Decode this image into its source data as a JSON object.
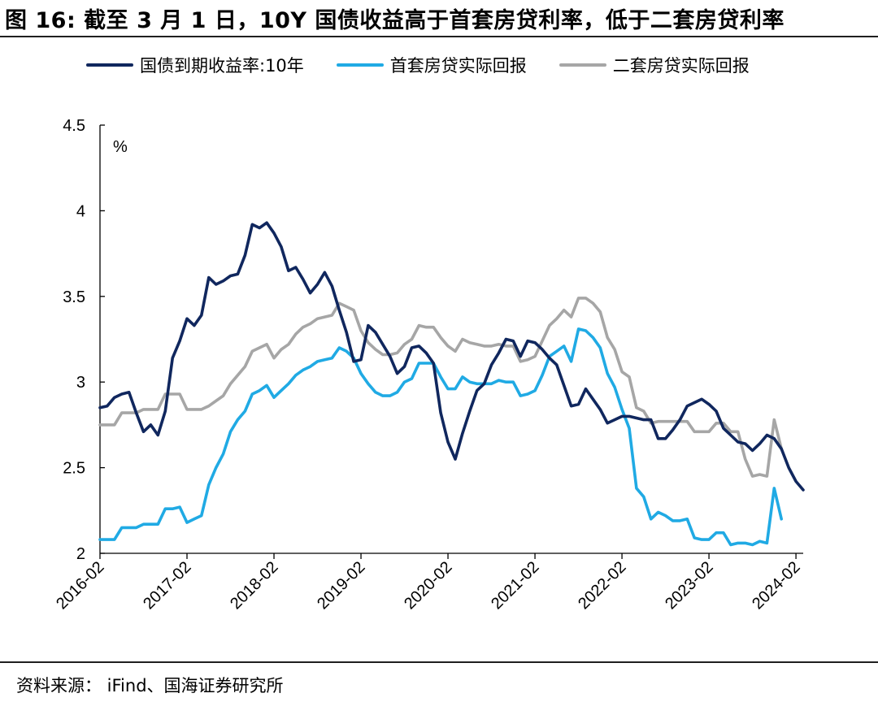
{
  "page": {
    "title": "图 16:  截至 3 月 1 日，10Y 国债收益高于首套房贷利率，低于二套房贷利率",
    "source": "资料来源：  iFind、国海证券研究所"
  },
  "chart_data": {
    "type": "line",
    "ylabel": "%",
    "ylim": [
      2,
      4.5
    ],
    "yticks": [
      2,
      2.5,
      3,
      3.5,
      4,
      4.5
    ],
    "xlim": [
      "2016-02",
      "2024-03"
    ],
    "xticks": [
      "2016-02",
      "2017-02",
      "2018-02",
      "2019-02",
      "2020-02",
      "2021-02",
      "2022-02",
      "2023-02",
      "2024-02"
    ],
    "grid": false,
    "legend_position": "top",
    "series": [
      {
        "name": "国债到期收益率:10年",
        "color": "#10275e",
        "points": [
          [
            "2016-02",
            2.85
          ],
          [
            "2016-03",
            2.86
          ],
          [
            "2016-04",
            2.91
          ],
          [
            "2016-05",
            2.93
          ],
          [
            "2016-06",
            2.94
          ],
          [
            "2016-07",
            2.82
          ],
          [
            "2016-08",
            2.71
          ],
          [
            "2016-09",
            2.75
          ],
          [
            "2016-10",
            2.69
          ],
          [
            "2016-11",
            2.83
          ],
          [
            "2016-12",
            3.14
          ],
          [
            "2017-01",
            3.24
          ],
          [
            "2017-02",
            3.37
          ],
          [
            "2017-03",
            3.33
          ],
          [
            "2017-04",
            3.39
          ],
          [
            "2017-05",
            3.61
          ],
          [
            "2017-06",
            3.57
          ],
          [
            "2017-07",
            3.59
          ],
          [
            "2017-08",
            3.62
          ],
          [
            "2017-09",
            3.63
          ],
          [
            "2017-10",
            3.74
          ],
          [
            "2017-11",
            3.92
          ],
          [
            "2017-12",
            3.9
          ],
          [
            "2018-01",
            3.93
          ],
          [
            "2018-02",
            3.87
          ],
          [
            "2018-03",
            3.79
          ],
          [
            "2018-04",
            3.65
          ],
          [
            "2018-05",
            3.67
          ],
          [
            "2018-06",
            3.6
          ],
          [
            "2018-07",
            3.52
          ],
          [
            "2018-08",
            3.57
          ],
          [
            "2018-09",
            3.64
          ],
          [
            "2018-10",
            3.56
          ],
          [
            "2018-11",
            3.42
          ],
          [
            "2018-12",
            3.29
          ],
          [
            "2019-01",
            3.12
          ],
          [
            "2019-02",
            3.13
          ],
          [
            "2019-03",
            3.33
          ],
          [
            "2019-04",
            3.29
          ],
          [
            "2019-05",
            3.22
          ],
          [
            "2019-06",
            3.15
          ],
          [
            "2019-07",
            3.05
          ],
          [
            "2019-08",
            3.09
          ],
          [
            "2019-09",
            3.2
          ],
          [
            "2019-10",
            3.21
          ],
          [
            "2019-11",
            3.17
          ],
          [
            "2019-12",
            3.11
          ],
          [
            "2020-01",
            2.82
          ],
          [
            "2020-02",
            2.65
          ],
          [
            "2020-03",
            2.55
          ],
          [
            "2020-04",
            2.7
          ],
          [
            "2020-05",
            2.83
          ],
          [
            "2020-06",
            2.95
          ],
          [
            "2020-07",
            2.99
          ],
          [
            "2020-08",
            3.1
          ],
          [
            "2020-09",
            3.17
          ],
          [
            "2020-10",
            3.25
          ],
          [
            "2020-11",
            3.24
          ],
          [
            "2020-12",
            3.15
          ],
          [
            "2021-01",
            3.24
          ],
          [
            "2021-02",
            3.23
          ],
          [
            "2021-03",
            3.19
          ],
          [
            "2021-04",
            3.14
          ],
          [
            "2021-05",
            3.1
          ],
          [
            "2021-06",
            2.98
          ],
          [
            "2021-07",
            2.86
          ],
          [
            "2021-08",
            2.87
          ],
          [
            "2021-09",
            2.96
          ],
          [
            "2021-10",
            2.9
          ],
          [
            "2021-11",
            2.84
          ],
          [
            "2021-12",
            2.76
          ],
          [
            "2022-01",
            2.78
          ],
          [
            "2022-02",
            2.8
          ],
          [
            "2022-03",
            2.8
          ],
          [
            "2022-04",
            2.79
          ],
          [
            "2022-05",
            2.78
          ],
          [
            "2022-06",
            2.78
          ],
          [
            "2022-07",
            2.67
          ],
          [
            "2022-08",
            2.67
          ],
          [
            "2022-09",
            2.72
          ],
          [
            "2022-10",
            2.78
          ],
          [
            "2022-11",
            2.86
          ],
          [
            "2022-12",
            2.88
          ],
          [
            "2023-01",
            2.9
          ],
          [
            "2023-02",
            2.87
          ],
          [
            "2023-03",
            2.83
          ],
          [
            "2023-04",
            2.73
          ],
          [
            "2023-05",
            2.69
          ],
          [
            "2023-06",
            2.65
          ],
          [
            "2023-07",
            2.64
          ],
          [
            "2023-08",
            2.6
          ],
          [
            "2023-09",
            2.64
          ],
          [
            "2023-10",
            2.69
          ],
          [
            "2023-11",
            2.67
          ],
          [
            "2023-12",
            2.61
          ],
          [
            "2024-01",
            2.5
          ],
          [
            "2024-02",
            2.42
          ],
          [
            "2024-03",
            2.37
          ]
        ]
      },
      {
        "name": "首套房贷实际回报",
        "color": "#20aae4",
        "points": [
          [
            "2016-02",
            2.08
          ],
          [
            "2016-03",
            2.08
          ],
          [
            "2016-04",
            2.08
          ],
          [
            "2016-05",
            2.15
          ],
          [
            "2016-06",
            2.15
          ],
          [
            "2016-07",
            2.15
          ],
          [
            "2016-08",
            2.17
          ],
          [
            "2016-09",
            2.17
          ],
          [
            "2016-10",
            2.17
          ],
          [
            "2016-11",
            2.26
          ],
          [
            "2016-12",
            2.26
          ],
          [
            "2017-01",
            2.27
          ],
          [
            "2017-02",
            2.18
          ],
          [
            "2017-03",
            2.2
          ],
          [
            "2017-04",
            2.22
          ],
          [
            "2017-05",
            2.4
          ],
          [
            "2017-06",
            2.5
          ],
          [
            "2017-07",
            2.58
          ],
          [
            "2017-08",
            2.71
          ],
          [
            "2017-09",
            2.78
          ],
          [
            "2017-10",
            2.83
          ],
          [
            "2017-11",
            2.93
          ],
          [
            "2017-12",
            2.95
          ],
          [
            "2018-01",
            2.98
          ],
          [
            "2018-02",
            2.91
          ],
          [
            "2018-03",
            2.95
          ],
          [
            "2018-04",
            2.99
          ],
          [
            "2018-05",
            3.04
          ],
          [
            "2018-06",
            3.07
          ],
          [
            "2018-07",
            3.09
          ],
          [
            "2018-08",
            3.12
          ],
          [
            "2018-09",
            3.13
          ],
          [
            "2018-10",
            3.14
          ],
          [
            "2018-11",
            3.2
          ],
          [
            "2018-12",
            3.18
          ],
          [
            "2019-01",
            3.14
          ],
          [
            "2019-02",
            3.05
          ],
          [
            "2019-03",
            2.99
          ],
          [
            "2019-04",
            2.94
          ],
          [
            "2019-05",
            2.92
          ],
          [
            "2019-06",
            2.92
          ],
          [
            "2019-07",
            2.94
          ],
          [
            "2019-08",
            3.0
          ],
          [
            "2019-09",
            3.02
          ],
          [
            "2019-10",
            3.11
          ],
          [
            "2019-11",
            3.11
          ],
          [
            "2019-12",
            3.11
          ],
          [
            "2020-01",
            3.03
          ],
          [
            "2020-02",
            2.96
          ],
          [
            "2020-03",
            2.96
          ],
          [
            "2020-04",
            3.03
          ],
          [
            "2020-05",
            3.0
          ],
          [
            "2020-06",
            2.99
          ],
          [
            "2020-07",
            2.99
          ],
          [
            "2020-08",
            2.99
          ],
          [
            "2020-09",
            3.01
          ],
          [
            "2020-10",
            3.0
          ],
          [
            "2020-11",
            3.0
          ],
          [
            "2020-12",
            2.92
          ],
          [
            "2021-01",
            2.93
          ],
          [
            "2021-02",
            2.95
          ],
          [
            "2021-03",
            3.04
          ],
          [
            "2021-04",
            3.15
          ],
          [
            "2021-05",
            3.18
          ],
          [
            "2021-06",
            3.21
          ],
          [
            "2021-07",
            3.12
          ],
          [
            "2021-08",
            3.31
          ],
          [
            "2021-09",
            3.3
          ],
          [
            "2021-10",
            3.26
          ],
          [
            "2021-11",
            3.2
          ],
          [
            "2021-12",
            3.05
          ],
          [
            "2022-01",
            2.97
          ],
          [
            "2022-02",
            2.84
          ],
          [
            "2022-03",
            2.73
          ],
          [
            "2022-04",
            2.38
          ],
          [
            "2022-05",
            2.33
          ],
          [
            "2022-06",
            2.2
          ],
          [
            "2022-07",
            2.24
          ],
          [
            "2022-08",
            2.22
          ],
          [
            "2022-09",
            2.19
          ],
          [
            "2022-10",
            2.19
          ],
          [
            "2022-11",
            2.2
          ],
          [
            "2022-12",
            2.09
          ],
          [
            "2023-01",
            2.08
          ],
          [
            "2023-02",
            2.08
          ],
          [
            "2023-03",
            2.12
          ],
          [
            "2023-04",
            2.12
          ],
          [
            "2023-05",
            2.05
          ],
          [
            "2023-06",
            2.06
          ],
          [
            "2023-07",
            2.06
          ],
          [
            "2023-08",
            2.05
          ],
          [
            "2023-09",
            2.07
          ],
          [
            "2023-10",
            2.06
          ],
          [
            "2023-11",
            2.38
          ],
          [
            "2023-12",
            2.2
          ]
        ]
      },
      {
        "name": "二套房贷实际回报",
        "color": "#a6a6a6",
        "points": [
          [
            "2016-02",
            2.75
          ],
          [
            "2016-03",
            2.75
          ],
          [
            "2016-04",
            2.75
          ],
          [
            "2016-05",
            2.82
          ],
          [
            "2016-06",
            2.82
          ],
          [
            "2016-07",
            2.82
          ],
          [
            "2016-08",
            2.84
          ],
          [
            "2016-09",
            2.84
          ],
          [
            "2016-10",
            2.84
          ],
          [
            "2016-11",
            2.93
          ],
          [
            "2016-12",
            2.93
          ],
          [
            "2017-01",
            2.93
          ],
          [
            "2017-02",
            2.84
          ],
          [
            "2017-03",
            2.84
          ],
          [
            "2017-04",
            2.84
          ],
          [
            "2017-05",
            2.86
          ],
          [
            "2017-06",
            2.89
          ],
          [
            "2017-07",
            2.92
          ],
          [
            "2017-08",
            2.99
          ],
          [
            "2017-09",
            3.04
          ],
          [
            "2017-10",
            3.09
          ],
          [
            "2017-11",
            3.18
          ],
          [
            "2017-12",
            3.2
          ],
          [
            "2018-01",
            3.22
          ],
          [
            "2018-02",
            3.14
          ],
          [
            "2018-03",
            3.19
          ],
          [
            "2018-04",
            3.22
          ],
          [
            "2018-05",
            3.28
          ],
          [
            "2018-06",
            3.32
          ],
          [
            "2018-07",
            3.34
          ],
          [
            "2018-08",
            3.37
          ],
          [
            "2018-09",
            3.38
          ],
          [
            "2018-10",
            3.39
          ],
          [
            "2018-11",
            3.46
          ],
          [
            "2018-12",
            3.44
          ],
          [
            "2019-01",
            3.42
          ],
          [
            "2019-02",
            3.3
          ],
          [
            "2019-03",
            3.23
          ],
          [
            "2019-04",
            3.19
          ],
          [
            "2019-05",
            3.16
          ],
          [
            "2019-06",
            3.16
          ],
          [
            "2019-07",
            3.17
          ],
          [
            "2019-08",
            3.22
          ],
          [
            "2019-09",
            3.25
          ],
          [
            "2019-10",
            3.33
          ],
          [
            "2019-11",
            3.32
          ],
          [
            "2019-12",
            3.32
          ],
          [
            "2020-01",
            3.26
          ],
          [
            "2020-02",
            3.21
          ],
          [
            "2020-03",
            3.18
          ],
          [
            "2020-04",
            3.25
          ],
          [
            "2020-05",
            3.23
          ],
          [
            "2020-06",
            3.22
          ],
          [
            "2020-07",
            3.21
          ],
          [
            "2020-08",
            3.21
          ],
          [
            "2020-09",
            3.22
          ],
          [
            "2020-10",
            3.21
          ],
          [
            "2020-11",
            3.21
          ],
          [
            "2020-12",
            3.12
          ],
          [
            "2021-01",
            3.13
          ],
          [
            "2021-02",
            3.15
          ],
          [
            "2021-03",
            3.24
          ],
          [
            "2021-04",
            3.33
          ],
          [
            "2021-05",
            3.37
          ],
          [
            "2021-06",
            3.42
          ],
          [
            "2021-07",
            3.38
          ],
          [
            "2021-08",
            3.49
          ],
          [
            "2021-09",
            3.49
          ],
          [
            "2021-10",
            3.46
          ],
          [
            "2021-11",
            3.41
          ],
          [
            "2021-12",
            3.26
          ],
          [
            "2022-01",
            3.19
          ],
          [
            "2022-02",
            3.06
          ],
          [
            "2022-03",
            3.03
          ],
          [
            "2022-04",
            2.85
          ],
          [
            "2022-05",
            2.83
          ],
          [
            "2022-06",
            2.76
          ],
          [
            "2022-07",
            2.77
          ],
          [
            "2022-08",
            2.77
          ],
          [
            "2022-09",
            2.77
          ],
          [
            "2022-10",
            2.77
          ],
          [
            "2022-11",
            2.77
          ],
          [
            "2022-12",
            2.71
          ],
          [
            "2023-01",
            2.71
          ],
          [
            "2023-02",
            2.71
          ],
          [
            "2023-03",
            2.76
          ],
          [
            "2023-04",
            2.76
          ],
          [
            "2023-05",
            2.71
          ],
          [
            "2023-06",
            2.71
          ],
          [
            "2023-07",
            2.55
          ],
          [
            "2023-08",
            2.45
          ],
          [
            "2023-09",
            2.46
          ],
          [
            "2023-10",
            2.45
          ],
          [
            "2023-11",
            2.78
          ],
          [
            "2023-12",
            2.61
          ]
        ]
      }
    ]
  }
}
